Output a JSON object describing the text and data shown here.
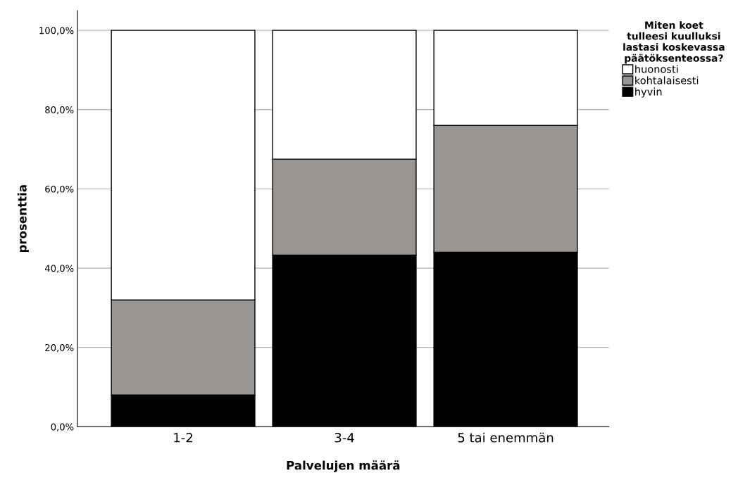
{
  "chart_data": {
    "type": "bar",
    "stacked": true,
    "xlabel": "Palvelujen määrä",
    "ylabel": "prosenttia",
    "legend_title": "Miten koet tulleesi kuulluksi lastasi koskevassa päätöksenteossa?",
    "legend": "top right",
    "grid": "y",
    "categories": [
      "1-2",
      "3-4",
      "5 tai enemmän"
    ],
    "series": [
      {
        "name": "hyvin",
        "color": "#000000",
        "values": [
          8.0,
          43.3,
          44.0
        ]
      },
      {
        "name": "kohtalaisesti",
        "color": "#999593",
        "values": [
          24.0,
          24.2,
          32.0
        ]
      },
      {
        "name": "huonosti",
        "color": "#ffffff",
        "values": [
          68.0,
          32.5,
          24.0
        ]
      }
    ],
    "ylim": [
      0,
      105
    ],
    "yticks": [
      {
        "value": 0,
        "label": "0,0%"
      },
      {
        "value": 20,
        "label": "20,0%"
      },
      {
        "value": 40,
        "label": "40,0%"
      },
      {
        "value": 60,
        "label": "60,0%"
      },
      {
        "value": 80,
        "label": "80,0%"
      },
      {
        "value": 100,
        "label": "100,0%"
      }
    ]
  }
}
